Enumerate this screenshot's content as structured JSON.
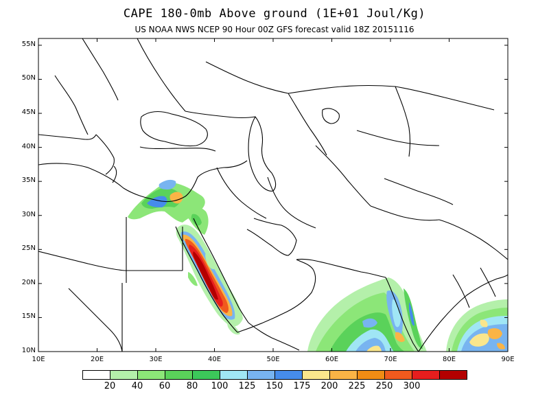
{
  "header": {
    "title": "CAPE 180-0mb Above ground (1E+01 Joul/Kg)",
    "subtitle": "US NOAA NWS NCEP 90 Hour 00Z GFS forecast valid 18Z 20151116"
  },
  "axes": {
    "lat_ticks": [
      "55N",
      "50N",
      "45N",
      "40N",
      "35N",
      "30N",
      "25N",
      "20N",
      "15N",
      "10N"
    ],
    "lat_values": [
      55,
      50,
      45,
      40,
      35,
      30,
      25,
      20,
      15,
      10
    ],
    "lon_ticks": [
      "10E",
      "20E",
      "30E",
      "40E",
      "50E",
      "60E",
      "70E",
      "80E",
      "90E"
    ],
    "lon_values": [
      10,
      20,
      30,
      40,
      50,
      60,
      70,
      80,
      90
    ],
    "lat_range": [
      10,
      56
    ],
    "lon_range": [
      10,
      90
    ]
  },
  "legend": {
    "labels": [
      "20",
      "40",
      "60",
      "80",
      "100",
      "125",
      "150",
      "175",
      "200",
      "225",
      "250",
      "300"
    ],
    "colors": [
      "#ffffff",
      "#b4f0aa",
      "#8ce678",
      "#5ad25a",
      "#3cc85a",
      "#a0e6f5",
      "#78b4f0",
      "#468ceb",
      "#fae68c",
      "#fab446",
      "#f08c14",
      "#f05a1e",
      "#e61e1e",
      "#b40000"
    ]
  },
  "colors": {
    "coastline": "#000000",
    "background": "#ffffff"
  }
}
